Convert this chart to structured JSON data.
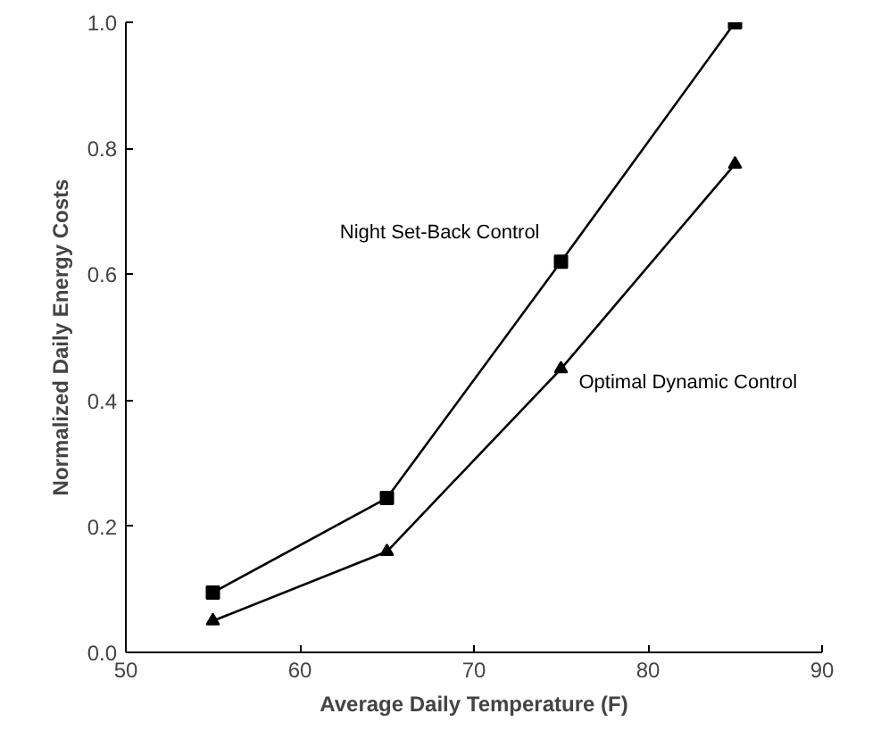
{
  "chart_data": {
    "type": "line",
    "xlabel": "Average Daily Temperature (F)",
    "ylabel": "Normalized Daily Energy Costs",
    "x": [
      55,
      65,
      75,
      85
    ],
    "series": [
      {
        "name": "Night Set-Back Control",
        "color": "#000000",
        "marker": "square",
        "values": [
          0.095,
          0.245,
          0.62,
          1.0
        ]
      },
      {
        "name": "Optimal Dynamic Control",
        "color": "#000000",
        "marker": "triangle",
        "values": [
          0.05,
          0.16,
          0.45,
          0.775
        ]
      }
    ],
    "xlim": [
      50,
      90
    ],
    "ylim": [
      0,
      1.0
    ],
    "xticks": [
      50,
      60,
      70,
      80,
      90
    ],
    "yticks": [
      {
        "value": 0,
        "label": "0.0"
      },
      {
        "value": 0.2,
        "label": "0.2"
      },
      {
        "value": 0.4,
        "label": "0.4"
      },
      {
        "value": 0.6,
        "label": "0.6"
      },
      {
        "value": 0.8,
        "label": "0.8"
      },
      {
        "value": 1.0,
        "label": "1.0"
      }
    ],
    "grid": false,
    "line_style": "solid",
    "legend": false
  }
}
